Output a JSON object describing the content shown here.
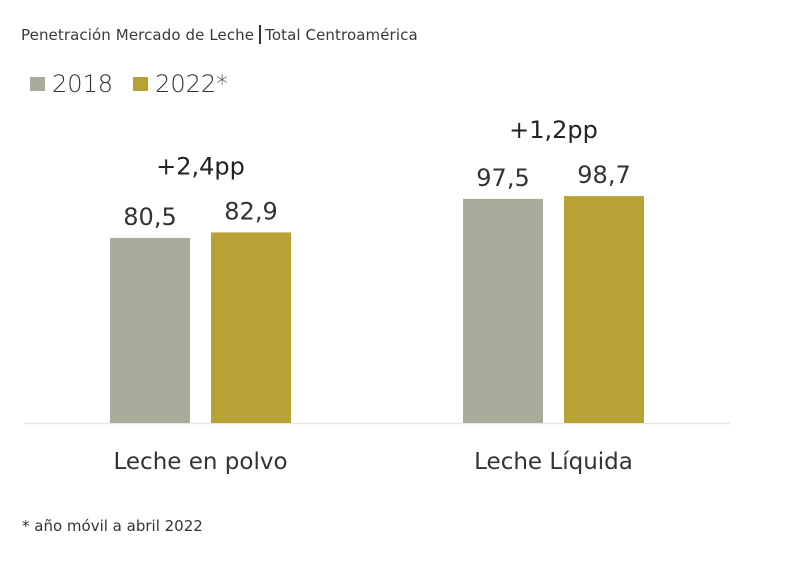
{
  "title": {
    "main": "Penetración Mercado de Leche",
    "sub": "Total Centroamérica"
  },
  "legend": [
    {
      "label": "2018",
      "color": "#abab9b"
    },
    {
      "label": "2022*",
      "color": "#b9a136"
    }
  ],
  "footnote": "* año móvil a abril 2022",
  "chart_data": {
    "type": "bar",
    "title": "Penetración Mercado de Leche | Total Centroamérica",
    "xlabel": "",
    "ylabel": "",
    "categories": [
      "Leche en polvo",
      "Leche Líquida"
    ],
    "series": [
      {
        "name": "2018",
        "color": "#abab9b",
        "values": [
          80.5,
          97.5
        ],
        "labels": [
          "80,5",
          "97,5"
        ]
      },
      {
        "name": "2022*",
        "color": "#b9a136",
        "values": [
          82.9,
          98.7
        ],
        "labels": [
          "82,9",
          "98,7"
        ]
      }
    ],
    "annotations": [
      "+2,4pp",
      "+1,2pp"
    ],
    "ylim": [
      0,
      184
    ],
    "grid": false,
    "legend_position": "top-left"
  }
}
